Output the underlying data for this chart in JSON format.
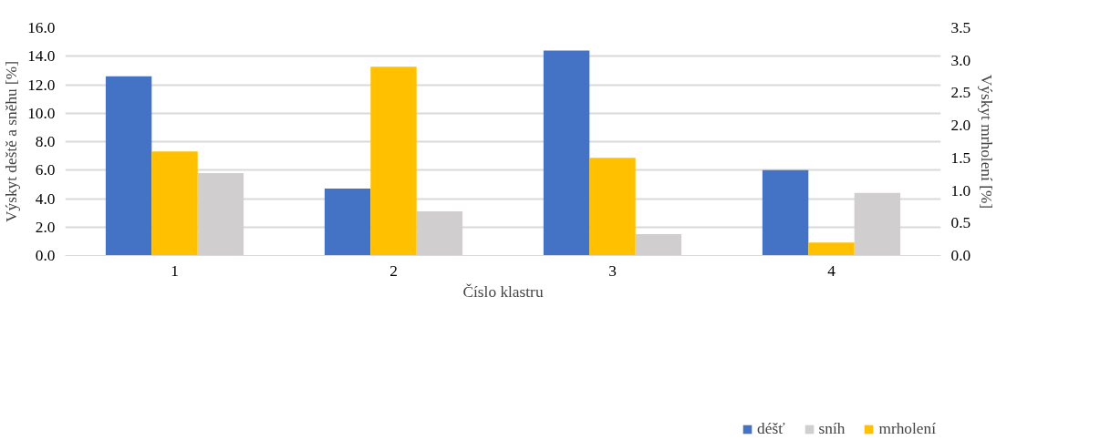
{
  "chart_data": {
    "type": "bar",
    "xlabel": "Číslo klastru",
    "ylabel": "Výskyt deště a sněhu [%]",
    "y2label": "Výskyt mrholení [%]",
    "categories": [
      "1",
      "2",
      "3",
      "4"
    ],
    "series": [
      {
        "name": "déšť",
        "color": "#4472c4",
        "values": [
          12.6,
          4.7,
          14.4,
          6.0
        ]
      },
      {
        "name": "sníh",
        "color": "#d0cece",
        "values": [
          5.8,
          3.1,
          1.5,
          4.4
        ]
      },
      {
        "name": "mrholení",
        "color": "#ffc000",
        "values": [
          1.6,
          2.9,
          1.5,
          0.2
        ],
        "axis": "y2"
      }
    ],
    "ylim": [
      0,
      16
    ],
    "yticks": [
      {
        "value": 0,
        "label": "0.0"
      },
      {
        "value": 2,
        "label": "2.0"
      },
      {
        "value": 4,
        "label": "4.0"
      },
      {
        "value": 6,
        "label": "6.0"
      },
      {
        "value": 8,
        "label": "8.0"
      },
      {
        "value": 10,
        "label": "10.0"
      },
      {
        "value": 12,
        "label": "12.0"
      },
      {
        "value": 14,
        "label": "14.0"
      },
      {
        "value": 16,
        "label": "16.0"
      }
    ],
    "y2lim": [
      0,
      3.5
    ],
    "y2ticks": [
      {
        "value": 0,
        "label": "0.0"
      },
      {
        "value": 0.5,
        "label": "0.5"
      },
      {
        "value": 1,
        "label": "1.0"
      },
      {
        "value": 1.5,
        "label": "1.5"
      },
      {
        "value": 2,
        "label": "2.0"
      },
      {
        "value": 2.5,
        "label": "2.5"
      },
      {
        "value": 3,
        "label": "3.0"
      },
      {
        "value": 3.5,
        "label": "3.5"
      }
    ],
    "grid": "y",
    "legend": "bottom"
  }
}
